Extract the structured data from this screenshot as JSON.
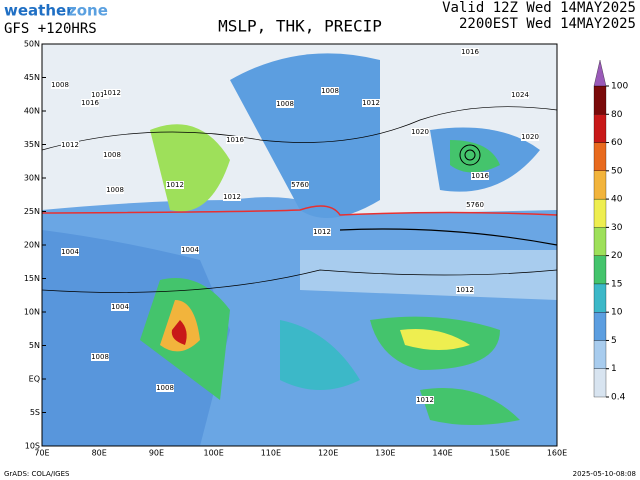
{
  "header": {
    "logo_a": "weather",
    "logo_b": "zone",
    "model": "GFS +120HRS",
    "title": "MSLP, THK, PRECIP",
    "valid_utc": "Valid 12Z Wed 14MAY2025",
    "valid_local": "2200EST Wed 14MAY2025"
  },
  "map": {
    "lat_labels": [
      "50N",
      "45N",
      "40N",
      "35N",
      "30N",
      "25N",
      "20N",
      "15N",
      "10N",
      "5N",
      "EQ",
      "5S",
      "10S"
    ],
    "lon_labels": [
      "70E",
      "80E",
      "90E",
      "100E",
      "110E",
      "120E",
      "130E",
      "140E",
      "150E",
      "160E"
    ],
    "contour_labels": [
      "1008",
      "1016",
      "1012",
      "1012",
      "1008",
      "1020",
      "1024",
      "1016",
      "1016",
      "1020",
      "1016",
      "1012",
      "1008",
      "1004",
      "1004",
      "1012",
      "1008",
      "1012",
      "1008",
      "1004",
      "1008",
      "1008",
      "1012",
      "5760",
      "5760",
      "1012",
      "1012",
      "1016"
    ]
  },
  "colorbar": {
    "levels": [
      0.4,
      1,
      5,
      10,
      15,
      20,
      30,
      40,
      50,
      60,
      80,
      100
    ],
    "colors": [
      "#d8e4f0",
      "#a8ccee",
      "#5c9ee0",
      "#3cb8c8",
      "#44c46c",
      "#9ee05a",
      "#eeee50",
      "#f2b43c",
      "#e86a1e",
      "#c81818",
      "#7a0a0a"
    ],
    "top_color": "#9a5ab8"
  },
  "footer": {
    "source": "GrADS: COLA/IGES",
    "timestamp": "2025-05-10-08:08"
  }
}
